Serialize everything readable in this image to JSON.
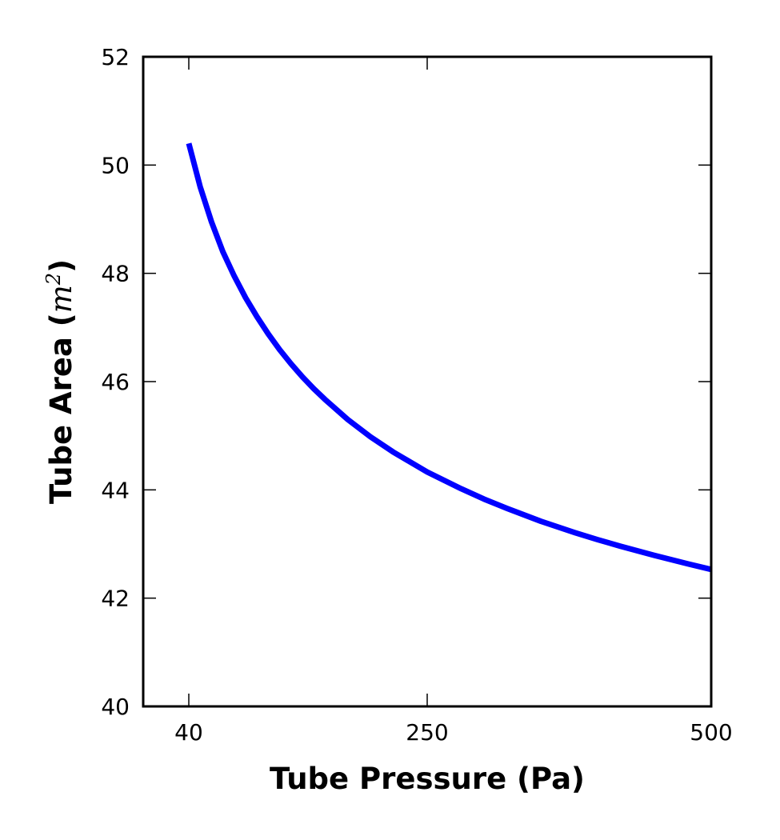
{
  "chart_data": {
    "type": "line",
    "title": "",
    "xlabel": "Tube Pressure (Pa)",
    "ylabel": {
      "prefix": "Tube Area (",
      "math": "m",
      "superscript": "2",
      "suffix": ")"
    },
    "xlim": [
      40,
      500
    ],
    "ylim": [
      40,
      52
    ],
    "x_ticks": [
      {
        "value": 40,
        "label": "40"
      },
      {
        "value": 250,
        "label": "250"
      },
      {
        "value": 500,
        "label": "500"
      }
    ],
    "y_ticks": [
      {
        "value": 40,
        "label": "40"
      },
      {
        "value": 42,
        "label": "42"
      },
      {
        "value": 44,
        "label": "44"
      },
      {
        "value": 46,
        "label": "46"
      },
      {
        "value": 48,
        "label": "48"
      },
      {
        "value": 50,
        "label": "50"
      },
      {
        "value": 52,
        "label": "52"
      }
    ],
    "grid": false,
    "legend": "none",
    "series": [
      {
        "color": "#0000ff",
        "x": [
          40,
          50,
          60,
          70,
          80,
          90,
          100,
          110,
          120,
          130,
          140,
          150,
          160,
          180,
          200,
          220,
          250,
          280,
          300,
          320,
          350,
          380,
          400,
          420,
          450,
          480,
          500
        ],
        "y": [
          50.4,
          49.6,
          48.95,
          48.4,
          47.95,
          47.55,
          47.2,
          46.88,
          46.59,
          46.33,
          46.09,
          45.87,
          45.67,
          45.3,
          44.98,
          44.7,
          44.33,
          44.02,
          43.83,
          43.66,
          43.42,
          43.21,
          43.08,
          42.96,
          42.79,
          42.63,
          42.53
        ]
      }
    ]
  }
}
